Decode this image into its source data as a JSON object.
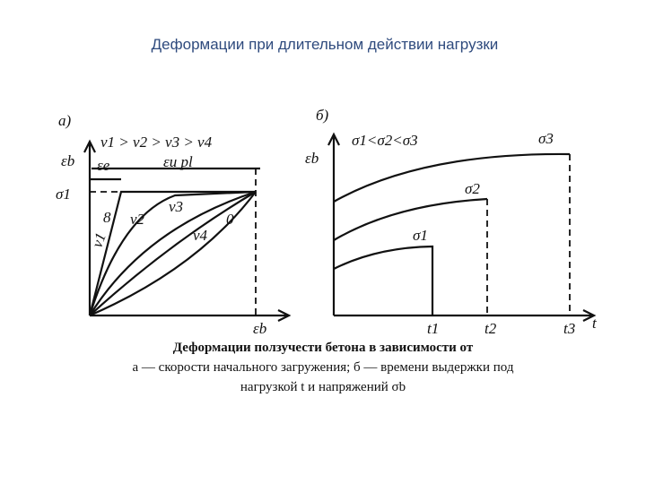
{
  "title": "Деформации при длительном действии нагрузки",
  "panel_a": {
    "label": "а)",
    "y_axis": "εb",
    "x_axis": "εb",
    "elastic": "εe",
    "creep": "εu pl",
    "stress": "σ1",
    "condition": "v1 > v2 > v3 > v4",
    "curves": [
      "8",
      "v1",
      "v2",
      "v3",
      "v4",
      "0"
    ]
  },
  "panel_b": {
    "label": "б)",
    "y_axis": "εb",
    "condition": "σ1<σ2<σ3",
    "curves": [
      "σ3",
      "σ2",
      "σ1"
    ],
    "times": [
      "t1",
      "t2",
      "t3"
    ],
    "x_axis": "t"
  },
  "caption": [
    "Деформации ползучести бетона в зависимости от",
    "а — скорости начального загружения; б — времени выдержки под",
    "нагрузкой t и напряжений σb"
  ]
}
